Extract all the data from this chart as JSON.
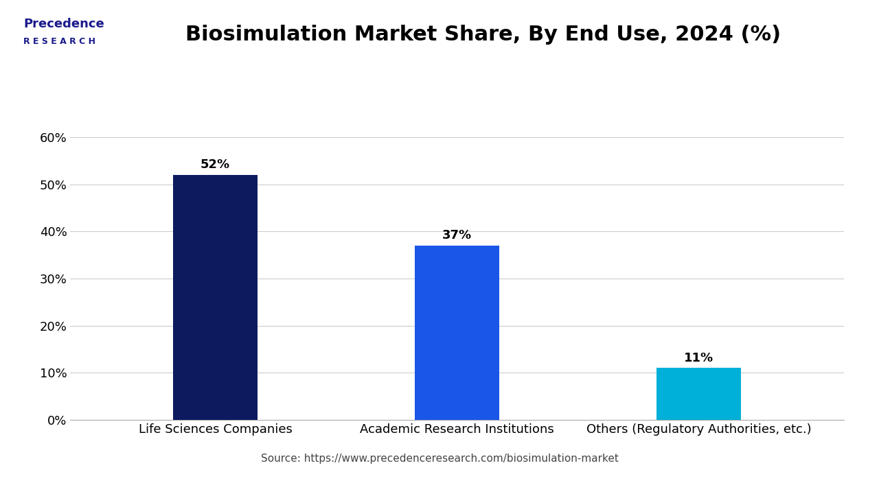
{
  "title": "Biosimulation Market Share, By End Use, 2024 (%)",
  "categories": [
    "Life Sciences Companies",
    "Academic Research Institutions",
    "Others (Regulatory Authorities, etc.)"
  ],
  "values": [
    52,
    37,
    11
  ],
  "labels": [
    "52%",
    "37%",
    "11%"
  ],
  "bar_colors": [
    "#0d1b5e",
    "#1a56e8",
    "#00b0d8"
  ],
  "ylim": [
    0,
    65
  ],
  "yticks": [
    0,
    10,
    20,
    30,
    40,
    50,
    60
  ],
  "ytick_labels": [
    "0%",
    "10%",
    "20%",
    "30%",
    "40%",
    "50%",
    "60%"
  ],
  "background_color": "#ffffff",
  "plot_bg_color": "#ffffff",
  "grid_color": "#cccccc",
  "source_text": "Source: https://www.precedenceresearch.com/biosimulation-market",
  "title_fontsize": 22,
  "label_fontsize": 13,
  "tick_fontsize": 13,
  "source_fontsize": 11,
  "bar_label_fontsize": 13,
  "separator_color": "#1a1a6e",
  "logo_text1": "Precedence",
  "logo_text2": "R E S E A R C H",
  "logo_color": "#1a1a8c"
}
